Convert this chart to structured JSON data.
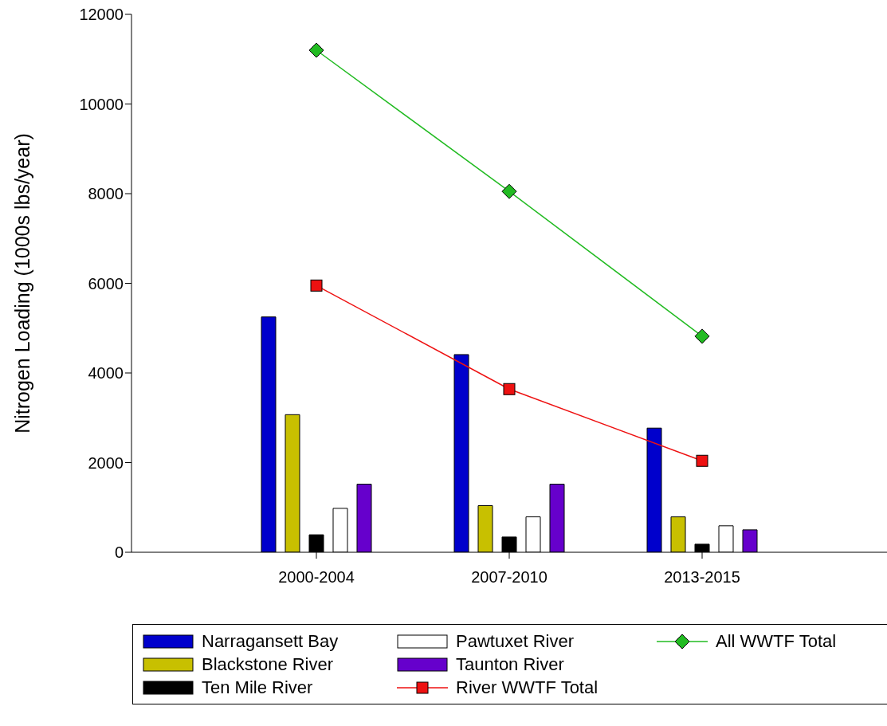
{
  "chart_data": {
    "type": "bar",
    "ylabel": "Nitrogen Loading (1000s lbs/year)",
    "categories": [
      "2000-2004",
      "2007-2010",
      "2013-2015"
    ],
    "ylim": [
      0,
      12000
    ],
    "yticks": [
      0,
      2000,
      4000,
      6000,
      8000,
      10000,
      12000
    ],
    "grid": false,
    "legend": "bottom",
    "series": [
      {
        "name": "Narragansett Bay",
        "color": "#0000cc",
        "values": [
          5250,
          4410,
          2770
        ]
      },
      {
        "name": "Blackstone River",
        "color": "#c8c000",
        "values": [
          3070,
          1040,
          790
        ]
      },
      {
        "name": "Ten Mile River",
        "color": "#000000",
        "values": [
          390,
          340,
          180
        ]
      },
      {
        "name": "Pawtuxet River",
        "color": "#ffffff",
        "values": [
          980,
          790,
          590
        ]
      },
      {
        "name": "Taunton River",
        "color": "#6600cc",
        "values": [
          1520,
          1520,
          500
        ]
      },
      {
        "name": "River WWTF Total",
        "type": "line",
        "marker": "square",
        "color": "#ee1111",
        "values": [
          5950,
          3640,
          2040
        ]
      },
      {
        "name": "All WWTF Total",
        "type": "line",
        "marker": "diamond",
        "color": "#22bb22",
        "values": [
          11200,
          8050,
          4820
        ]
      }
    ]
  }
}
